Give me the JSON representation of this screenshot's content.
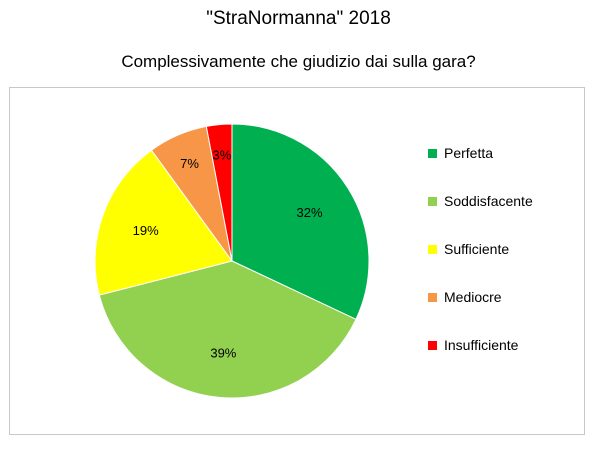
{
  "chart_data": {
    "type": "pie",
    "title": "\"StraNormanna\" 2018",
    "subtitle": "Complessivamente che giudizio dai sulla gara?",
    "categories": [
      "Perfetta",
      "Soddisfacente",
      "Sufficiente",
      "Mediocre",
      "Insufficiente"
    ],
    "values": [
      32,
      39,
      19,
      7,
      3
    ],
    "labels": [
      "32%",
      "39%",
      "19%",
      "7%",
      "3%"
    ],
    "colors": [
      "#00b050",
      "#92d050",
      "#ffff00",
      "#f79646",
      "#ff0000"
    ],
    "legend": "right",
    "start": "top",
    "direction": "clockwise"
  }
}
